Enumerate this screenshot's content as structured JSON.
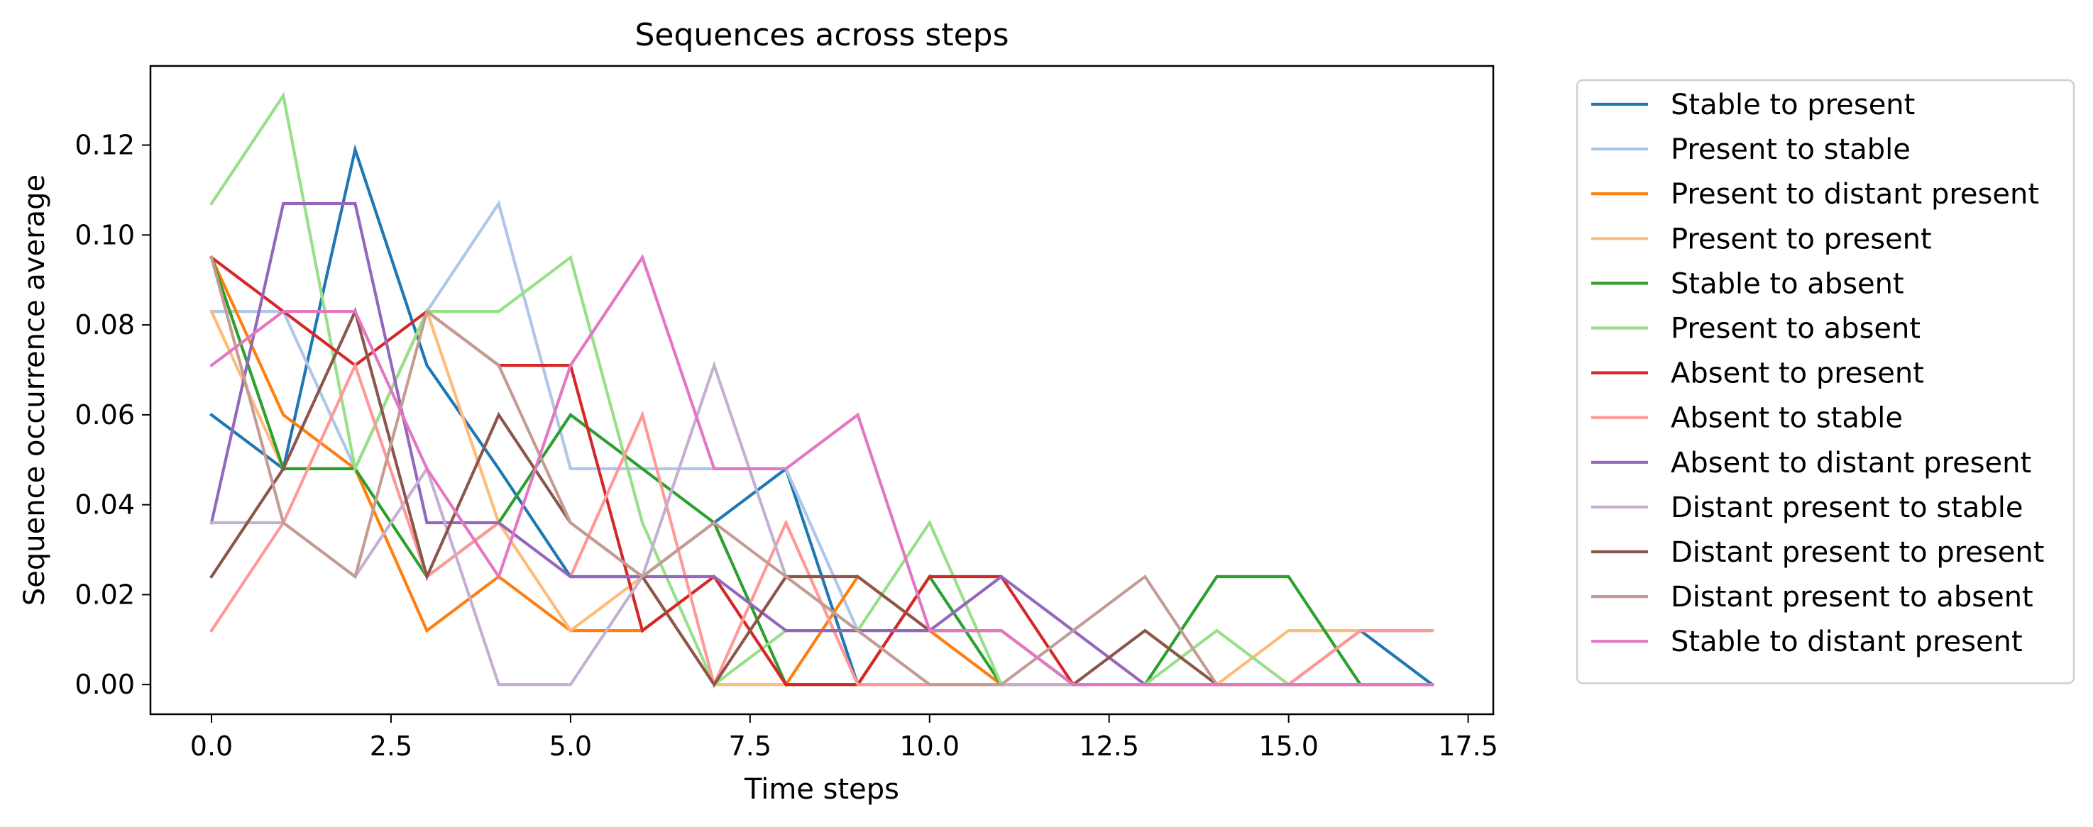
{
  "chart_data": {
    "type": "line",
    "title": "Sequences across steps",
    "xlabel": "Time steps",
    "ylabel": "Sequence occurrence average",
    "xlim": [
      -0.85,
      17.85
    ],
    "ylim": [
      -0.0066,
      0.1376
    ],
    "xticks": [
      0.0,
      2.5,
      5.0,
      7.5,
      10.0,
      12.5,
      15.0,
      17.5
    ],
    "xtick_labels": [
      "0.0",
      "2.5",
      "5.0",
      "7.5",
      "10.0",
      "12.5",
      "15.0",
      "17.5"
    ],
    "yticks": [
      0.0,
      0.02,
      0.04,
      0.06,
      0.08,
      0.1,
      0.12
    ],
    "ytick_labels": [
      "0.00",
      "0.02",
      "0.04",
      "0.06",
      "0.08",
      "0.10",
      "0.12"
    ],
    "grid": false,
    "legend_position": "outside-right",
    "x": [
      0,
      1,
      2,
      3,
      4,
      5,
      6,
      7,
      8,
      9,
      10,
      11,
      12,
      13,
      14,
      15,
      16,
      17
    ],
    "series": [
      {
        "name": "Stable to present",
        "color": "#1f77b4",
        "values": [
          0.06,
          0.048,
          0.119,
          0.071,
          0.048,
          0.024,
          0.024,
          0.036,
          0.048,
          0.0,
          0.0,
          0.0,
          0.0,
          0.0,
          0.0,
          0.0,
          0.012,
          0.0
        ]
      },
      {
        "name": "Present to stable",
        "color": "#aec7e8",
        "values": [
          0.083,
          0.083,
          0.048,
          0.083,
          0.107,
          0.048,
          0.048,
          0.048,
          0.048,
          0.012,
          0.012,
          0.0,
          0.0,
          0.0,
          0.0,
          0.0,
          0.0,
          0.0
        ]
      },
      {
        "name": "Present to distant present",
        "color": "#ff7f0e",
        "values": [
          0.095,
          0.06,
          0.048,
          0.012,
          0.024,
          0.012,
          0.012,
          0.024,
          0.0,
          0.024,
          0.012,
          0.0,
          0.0,
          0.0,
          0.0,
          0.0,
          0.0,
          0.0
        ]
      },
      {
        "name": "Present to present",
        "color": "#ffbb78",
        "values": [
          0.083,
          0.048,
          0.048,
          0.083,
          0.036,
          0.012,
          0.024,
          0.0,
          0.0,
          0.0,
          0.0,
          0.0,
          0.0,
          0.0,
          0.0,
          0.012,
          0.012,
          0.012
        ]
      },
      {
        "name": "Stable to absent",
        "color": "#2ca02c",
        "values": [
          0.095,
          0.048,
          0.048,
          0.024,
          0.036,
          0.06,
          0.048,
          0.036,
          0.0,
          0.0,
          0.024,
          0.0,
          0.0,
          0.0,
          0.024,
          0.024,
          0.0,
          0.0
        ]
      },
      {
        "name": "Present to absent",
        "color": "#98df8a",
        "values": [
          0.107,
          0.131,
          0.048,
          0.083,
          0.083,
          0.095,
          0.036,
          0.0,
          0.012,
          0.012,
          0.036,
          0.0,
          0.0,
          0.0,
          0.012,
          0.0,
          0.0,
          0.0
        ]
      },
      {
        "name": "Absent to present",
        "color": "#d62728",
        "values": [
          0.095,
          0.083,
          0.071,
          0.083,
          0.071,
          0.071,
          0.012,
          0.024,
          0.0,
          0.0,
          0.024,
          0.024,
          0.0,
          0.0,
          0.0,
          0.0,
          0.0,
          0.0
        ]
      },
      {
        "name": "Absent to stable",
        "color": "#ff9896",
        "values": [
          0.012,
          0.036,
          0.071,
          0.024,
          0.036,
          0.024,
          0.06,
          0.0,
          0.036,
          0.0,
          0.0,
          0.0,
          0.0,
          0.0,
          0.0,
          0.0,
          0.012,
          0.012
        ]
      },
      {
        "name": "Absent to distant present",
        "color": "#9467bd",
        "values": [
          0.036,
          0.107,
          0.107,
          0.036,
          0.036,
          0.024,
          0.024,
          0.024,
          0.012,
          0.012,
          0.012,
          0.024,
          0.012,
          0.0,
          0.0,
          0.0,
          0.0,
          0.0
        ]
      },
      {
        "name": "Distant present to stable",
        "color": "#c5b0d5",
        "values": [
          0.036,
          0.036,
          0.024,
          0.048,
          0.0,
          0.0,
          0.024,
          0.071,
          0.024,
          0.012,
          0.0,
          0.0,
          0.0,
          0.0,
          0.0,
          0.0,
          0.0,
          0.0
        ]
      },
      {
        "name": "Distant present to present",
        "color": "#8c564b",
        "values": [
          0.024,
          0.048,
          0.083,
          0.024,
          0.06,
          0.036,
          0.024,
          0.0,
          0.024,
          0.024,
          0.012,
          0.012,
          0.0,
          0.012,
          0.0,
          0.0,
          0.0,
          0.0
        ]
      },
      {
        "name": "Distant present to absent",
        "color": "#c49c94",
        "values": [
          0.095,
          0.036,
          0.024,
          0.083,
          0.071,
          0.036,
          0.024,
          0.036,
          0.024,
          0.012,
          0.0,
          0.0,
          0.012,
          0.024,
          0.0,
          0.0,
          0.0,
          0.0
        ]
      },
      {
        "name": "Stable to distant present",
        "color": "#e377c2",
        "values": [
          0.071,
          0.083,
          0.083,
          0.048,
          0.024,
          0.071,
          0.095,
          0.048,
          0.048,
          0.06,
          0.012,
          0.012,
          0.0,
          0.0,
          0.0,
          0.0,
          0.0,
          0.0
        ]
      }
    ]
  }
}
